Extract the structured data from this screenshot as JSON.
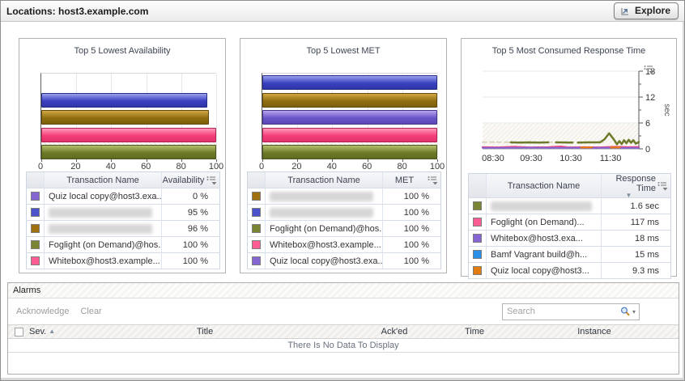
{
  "header": {
    "title": "Locations: host3.example.com",
    "explore_label": "Explore"
  },
  "colors": {
    "purple": "#8465d2",
    "blue": "#4a52cc",
    "gold": "#a0720f",
    "olive": "#7a8433",
    "pink": "#ff5c94",
    "azure": "#2a8fe8",
    "orange": "#e07c10",
    "accent_grid": "#e7e7e7",
    "threshold_hatch": "#e9e2d2"
  },
  "chart_data": [
    {
      "type": "bar",
      "title": "Top 5 Lowest Availability",
      "xlabel": "",
      "ylabel": "",
      "xlim": [
        0,
        100
      ],
      "xticks": [
        0,
        20,
        40,
        60,
        80,
        100
      ],
      "bars": [
        {
          "color": "purple",
          "value": 0
        },
        {
          "color": "blue",
          "value": 95
        },
        {
          "color": "gold",
          "value": 96
        },
        {
          "color": "pink",
          "value": 100
        },
        {
          "color": "olive",
          "value": 100
        }
      ]
    },
    {
      "type": "bar",
      "title": "Top 5 Lowest MET",
      "xlabel": "",
      "ylabel": "",
      "xlim": [
        0,
        100
      ],
      "xticks": [
        0,
        20,
        40,
        60,
        80,
        100
      ],
      "bars": [
        {
          "color": "blue",
          "value": 100
        },
        {
          "color": "gold",
          "value": 100
        },
        {
          "color": "purple",
          "value": 100
        },
        {
          "color": "pink",
          "value": 100
        },
        {
          "color": "olive",
          "value": 100
        }
      ]
    },
    {
      "type": "line",
      "title": "Top 5 Most Consumed Response Time",
      "ylabel": "sec",
      "ylim": [
        0,
        18
      ],
      "yticks": [
        0,
        6,
        12,
        18
      ],
      "minor_yticks": [
        3,
        9,
        15
      ],
      "threshold_band": [
        0,
        6
      ],
      "xticks": [
        {
          "label": "08:30",
          "f": 0.067
        },
        {
          "label": "09:30",
          "f": 0.311
        },
        {
          "label": "10:30",
          "f": 0.565
        },
        {
          "label": "11:30",
          "f": 0.819
        }
      ],
      "series": [
        {
          "name": "gap-baseline",
          "color": "#dbd5c2",
          "width": 2,
          "dash": "5,4",
          "segments": [
            [
              [
                0.0,
                1.55
              ],
              [
                0.78,
                1.55
              ]
            ]
          ]
        },
        {
          "name": "pink",
          "color": "#f0447e",
          "width": 2.5,
          "segments": [
            [
              [
                0,
                0.35
              ],
              [
                0.1,
                0.3
              ],
              [
                0.2,
                0.45
              ],
              [
                0.3,
                0.3
              ],
              [
                0.42,
                0.35
              ],
              [
                0.5,
                0.5
              ],
              [
                0.55,
                0.3
              ],
              [
                0.65,
                0.35
              ],
              [
                0.75,
                0.3
              ],
              [
                0.85,
                0.45
              ],
              [
                0.93,
                0.35
              ],
              [
                1,
                0.4
              ]
            ]
          ]
        },
        {
          "name": "purple",
          "color": "#8465d2",
          "width": 2,
          "segments": [
            [
              [
                0,
                0.25
              ],
              [
                0.15,
                0.22
              ],
              [
                0.3,
                0.28
              ],
              [
                0.45,
                0.22
              ],
              [
                0.6,
                0.26
              ],
              [
                0.7,
                0.2
              ],
              [
                0.8,
                0.26
              ],
              [
                0.9,
                0.2
              ],
              [
                1,
                0.24
              ]
            ]
          ]
        },
        {
          "name": "orange",
          "color": "#e07c10",
          "width": 2,
          "segments": [
            [
              [
                0.63,
                0.3
              ],
              [
                0.7,
                0.32
              ]
            ],
            [
              [
                0.82,
                0.3
              ],
              [
                0.88,
                0.33
              ]
            ]
          ]
        },
        {
          "name": "olive",
          "color": "#6d7a2a",
          "width": 2.5,
          "segments": [
            [
              [
                0.18,
                1.5
              ],
              [
                0.24,
                1.45
              ],
              [
                0.3,
                1.5
              ],
              [
                0.36,
                1.45
              ],
              [
                0.42,
                1.5
              ]
            ],
            [
              [
                0.47,
                1.5
              ],
              [
                0.575,
                1.45
              ]
            ],
            [
              [
                0.61,
                1.45
              ],
              [
                0.68,
                1.5
              ],
              [
                0.75,
                1.5
              ],
              [
                0.78,
                2.2
              ],
              [
                0.81,
                3.6
              ],
              [
                0.84,
                2.2
              ],
              [
                0.86,
                1.05
              ],
              [
                0.875,
                1.8
              ],
              [
                0.89,
                1.1
              ],
              [
                0.905,
                2.0
              ],
              [
                0.92,
                1.3
              ],
              [
                0.935,
                2.1
              ],
              [
                0.95,
                1.4
              ],
              [
                0.965,
                2.0
              ],
              [
                0.98,
                1.2
              ],
              [
                1.0,
                1.6
              ]
            ]
          ]
        }
      ]
    }
  ],
  "panels": [
    {
      "table": {
        "name_header": "Transaction Name",
        "value_header": "Availability",
        "sort": null,
        "rows": [
          {
            "color": "purple",
            "name": "Quiz local copy@host3.exa...",
            "value": "0 %",
            "redacted": false
          },
          {
            "color": "blue",
            "name": "",
            "value": "95 %",
            "redacted": true
          },
          {
            "color": "gold",
            "name": "",
            "value": "96 %",
            "redacted": true
          },
          {
            "color": "olive",
            "name": "Foglight (on Demand)@hos...",
            "value": "100 %",
            "redacted": false
          },
          {
            "color": "pink",
            "name": "Whitebox@host3.example...",
            "value": "100 %",
            "redacted": false
          }
        ]
      }
    },
    {
      "table": {
        "name_header": "Transaction Name",
        "value_header": "MET",
        "sort": null,
        "rows": [
          {
            "color": "gold",
            "name": "",
            "value": "100 %",
            "redacted": true
          },
          {
            "color": "blue",
            "name": "",
            "value": "100 %",
            "redacted": true
          },
          {
            "color": "olive",
            "name": "Foglight (on Demand)@hos...",
            "value": "100 %",
            "redacted": false
          },
          {
            "color": "pink",
            "name": "Whitebox@host3.example...",
            "value": "100 %",
            "redacted": false
          },
          {
            "color": "purple",
            "name": "Quiz local copy@host3.exa...",
            "value": "100 %",
            "redacted": false
          }
        ]
      }
    },
    {
      "table": {
        "name_header": "Transaction Name",
        "value_header": "Response Time",
        "sort": "desc",
        "rows": [
          {
            "color": "olive",
            "name": "",
            "value": "1.6 sec",
            "redacted": true
          },
          {
            "color": "pink",
            "name": "Foglight (on Demand)...",
            "value": "117 ms",
            "redacted": false
          },
          {
            "color": "purple",
            "name": "Whitebox@host3.exa...",
            "value": "18 ms",
            "redacted": false
          },
          {
            "color": "azure",
            "name": "Bamf Vagrant build@h...",
            "value": "15 ms",
            "redacted": false
          },
          {
            "color": "orange",
            "name": "Quiz local copy@host3...",
            "value": "9.3 ms",
            "redacted": false
          }
        ]
      }
    }
  ],
  "alarms": {
    "title": "Alarms",
    "acknowledge_label": "Acknowledge",
    "clear_label": "Clear",
    "search_placeholder": "Search",
    "columns": [
      "Sev.",
      "Title",
      "Ack'ed",
      "Time",
      "Instance"
    ],
    "sev_sort": "asc",
    "empty_text": "There Is No Data To Display"
  }
}
